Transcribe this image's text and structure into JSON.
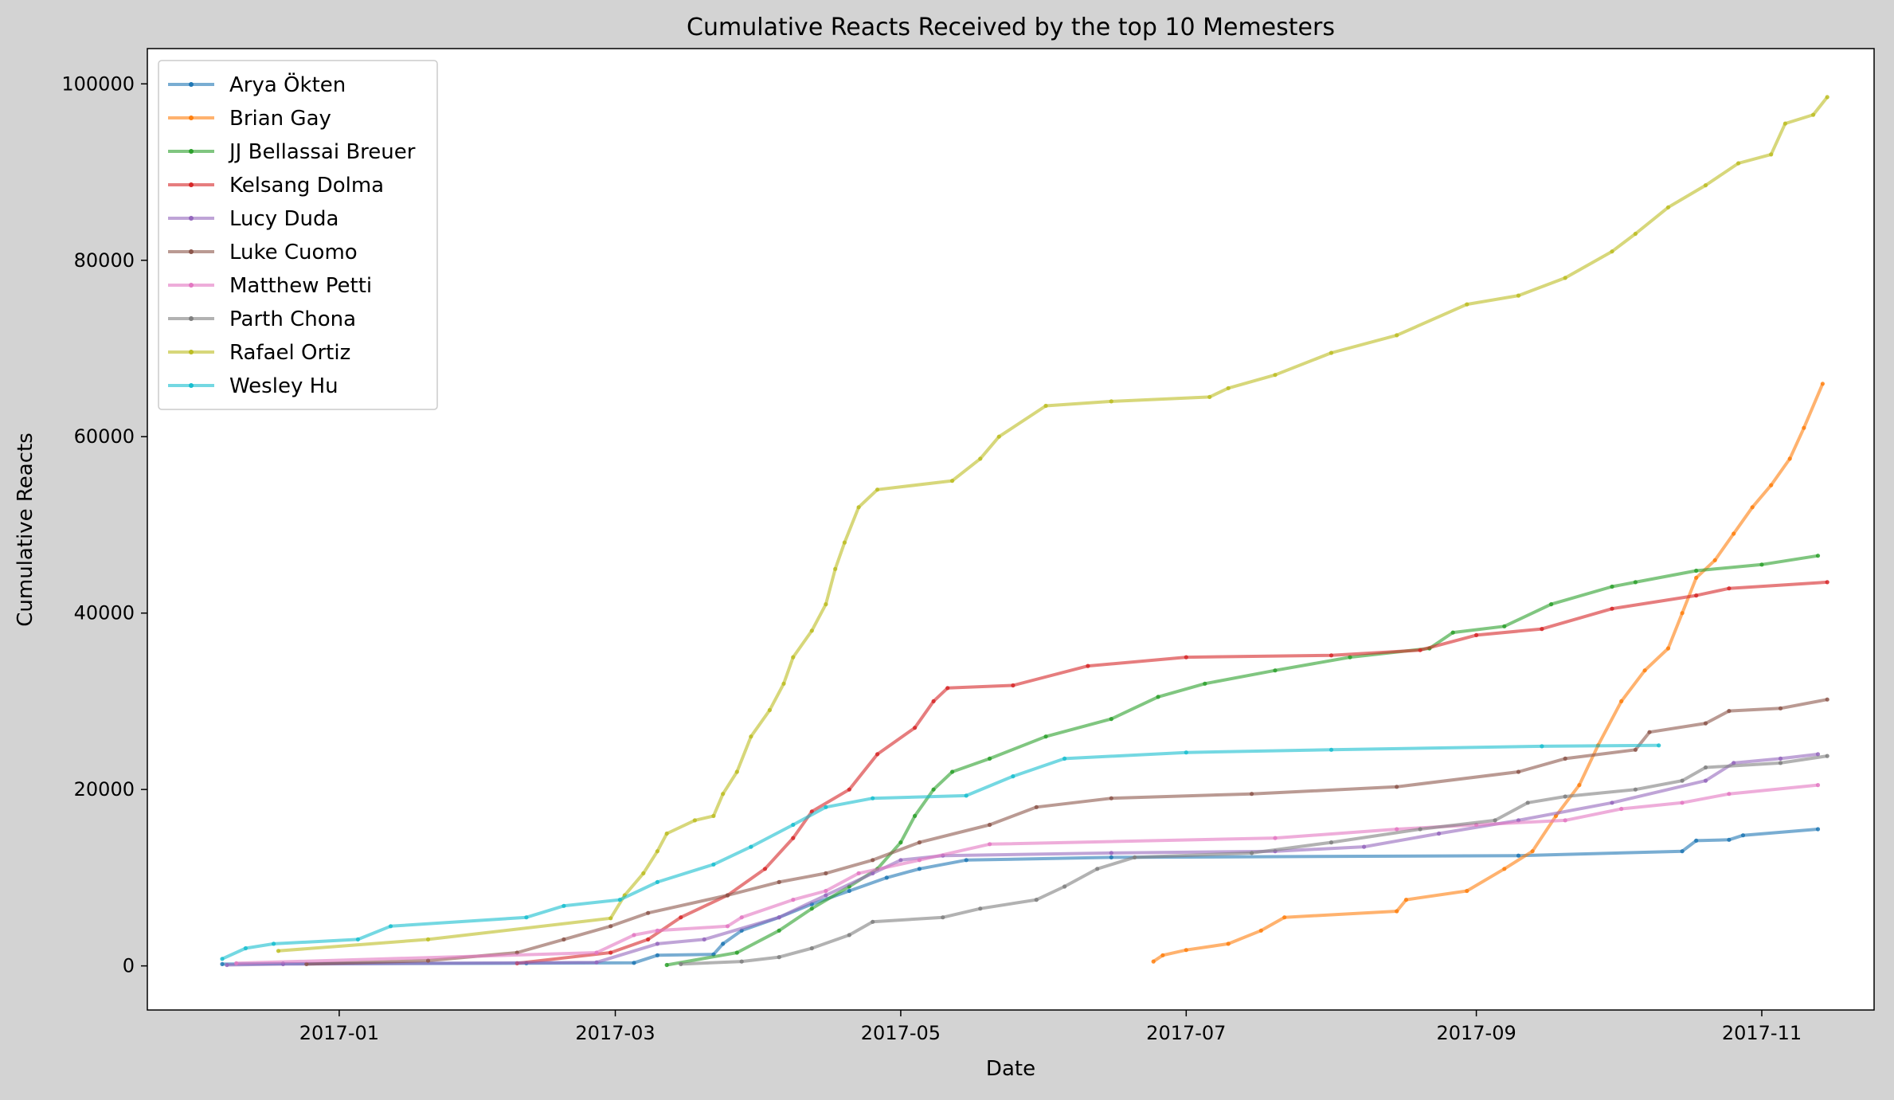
{
  "chart_data": {
    "type": "line",
    "title": "Cumulative Reacts Received by the top 10 Memesters",
    "xlabel": "Date",
    "ylabel": "Cumulative Reacts",
    "xlim": [
      "2016-11-21",
      "2017-11-25"
    ],
    "ylim": [
      -5000,
      104000
    ],
    "xticks": [
      {
        "date": "2017-01-01",
        "label": "2017-01"
      },
      {
        "date": "2017-03-01",
        "label": "2017-03"
      },
      {
        "date": "2017-05-01",
        "label": "2017-05"
      },
      {
        "date": "2017-07-01",
        "label": "2017-07"
      },
      {
        "date": "2017-09-01",
        "label": "2017-09"
      },
      {
        "date": "2017-11-01",
        "label": "2017-11"
      }
    ],
    "yticks": [
      0,
      20000,
      40000,
      60000,
      80000,
      100000
    ],
    "grid": false,
    "legend": "upper-left",
    "series": [
      {
        "name": "Arya Ökten",
        "color": "#1f77b4",
        "points": [
          [
            "2016-12-07",
            200
          ],
          [
            "2016-12-20",
            250
          ],
          [
            "2017-02-10",
            300
          ],
          [
            "2017-03-05",
            350
          ],
          [
            "2017-03-10",
            1200
          ],
          [
            "2017-03-22",
            1300
          ],
          [
            "2017-03-24",
            2500
          ],
          [
            "2017-03-28",
            4000
          ],
          [
            "2017-04-05",
            5500
          ],
          [
            "2017-04-12",
            7000
          ],
          [
            "2017-04-20",
            8500
          ],
          [
            "2017-04-28",
            10000
          ],
          [
            "2017-05-05",
            11000
          ],
          [
            "2017-05-15",
            12000
          ],
          [
            "2017-06-15",
            12300
          ],
          [
            "2017-09-10",
            12500
          ],
          [
            "2017-10-15",
            13000
          ],
          [
            "2017-10-18",
            14200
          ],
          [
            "2017-10-25",
            14300
          ],
          [
            "2017-10-28",
            14800
          ],
          [
            "2017-11-13",
            15500
          ]
        ]
      },
      {
        "name": "Brian Gay",
        "color": "#ff7f0e",
        "points": [
          [
            "2017-06-24",
            500
          ],
          [
            "2017-06-26",
            1200
          ],
          [
            "2017-07-01",
            1800
          ],
          [
            "2017-07-10",
            2500
          ],
          [
            "2017-07-17",
            4000
          ],
          [
            "2017-07-22",
            5500
          ],
          [
            "2017-08-15",
            6200
          ],
          [
            "2017-08-17",
            7500
          ],
          [
            "2017-08-30",
            8500
          ],
          [
            "2017-09-07",
            11000
          ],
          [
            "2017-09-13",
            13000
          ],
          [
            "2017-09-18",
            17000
          ],
          [
            "2017-09-23",
            20500
          ],
          [
            "2017-09-27",
            25000
          ],
          [
            "2017-10-02",
            30000
          ],
          [
            "2017-10-07",
            33500
          ],
          [
            "2017-10-12",
            36000
          ],
          [
            "2017-10-15",
            40000
          ],
          [
            "2017-10-18",
            44000
          ],
          [
            "2017-10-22",
            46000
          ],
          [
            "2017-10-26",
            49000
          ],
          [
            "2017-10-30",
            52000
          ],
          [
            "2017-11-03",
            54500
          ],
          [
            "2017-11-07",
            57500
          ],
          [
            "2017-11-10",
            61000
          ],
          [
            "2017-11-14",
            66000
          ]
        ]
      },
      {
        "name": "JJ Bellassai Breuer",
        "color": "#2ca02c",
        "points": [
          [
            "2017-03-12",
            100
          ],
          [
            "2017-03-27",
            1500
          ],
          [
            "2017-04-05",
            4000
          ],
          [
            "2017-04-12",
            6500
          ],
          [
            "2017-04-20",
            9000
          ],
          [
            "2017-04-26",
            11000
          ],
          [
            "2017-05-01",
            14000
          ],
          [
            "2017-05-04",
            17000
          ],
          [
            "2017-05-08",
            20000
          ],
          [
            "2017-05-12",
            22000
          ],
          [
            "2017-05-20",
            23500
          ],
          [
            "2017-06-01",
            26000
          ],
          [
            "2017-06-15",
            28000
          ],
          [
            "2017-06-25",
            30500
          ],
          [
            "2017-07-05",
            32000
          ],
          [
            "2017-07-20",
            33500
          ],
          [
            "2017-08-05",
            35000
          ],
          [
            "2017-08-22",
            36000
          ],
          [
            "2017-08-27",
            37800
          ],
          [
            "2017-09-07",
            38500
          ],
          [
            "2017-09-17",
            41000
          ],
          [
            "2017-09-30",
            43000
          ],
          [
            "2017-10-05",
            43500
          ],
          [
            "2017-10-18",
            44800
          ],
          [
            "2017-11-01",
            45500
          ],
          [
            "2017-11-13",
            46500
          ]
        ]
      },
      {
        "name": "Kelsang Dolma",
        "color": "#d62728",
        "points": [
          [
            "2017-02-08",
            300
          ],
          [
            "2017-02-28",
            1500
          ],
          [
            "2017-03-08",
            3000
          ],
          [
            "2017-03-15",
            5500
          ],
          [
            "2017-03-25",
            8000
          ],
          [
            "2017-04-02",
            11000
          ],
          [
            "2017-04-08",
            14500
          ],
          [
            "2017-04-12",
            17500
          ],
          [
            "2017-04-20",
            20000
          ],
          [
            "2017-04-26",
            24000
          ],
          [
            "2017-05-04",
            27000
          ],
          [
            "2017-05-08",
            30000
          ],
          [
            "2017-05-11",
            31500
          ],
          [
            "2017-05-25",
            31800
          ],
          [
            "2017-06-10",
            34000
          ],
          [
            "2017-07-01",
            35000
          ],
          [
            "2017-08-01",
            35200
          ],
          [
            "2017-08-20",
            35800
          ],
          [
            "2017-09-01",
            37500
          ],
          [
            "2017-09-15",
            38200
          ],
          [
            "2017-09-30",
            40500
          ],
          [
            "2017-10-18",
            42000
          ],
          [
            "2017-10-25",
            42800
          ],
          [
            "2017-11-15",
            43500
          ]
        ]
      },
      {
        "name": "Lucy Duda",
        "color": "#9467bd",
        "points": [
          [
            "2016-12-08",
            100
          ],
          [
            "2016-12-20",
            200
          ],
          [
            "2017-02-25",
            400
          ],
          [
            "2017-03-10",
            2500
          ],
          [
            "2017-03-20",
            3000
          ],
          [
            "2017-04-05",
            5500
          ],
          [
            "2017-04-15",
            8000
          ],
          [
            "2017-04-25",
            10500
          ],
          [
            "2017-05-01",
            12000
          ],
          [
            "2017-05-10",
            12500
          ],
          [
            "2017-06-15",
            12800
          ],
          [
            "2017-07-20",
            13000
          ],
          [
            "2017-08-08",
            13500
          ],
          [
            "2017-08-24",
            15000
          ],
          [
            "2017-09-10",
            16500
          ],
          [
            "2017-09-30",
            18500
          ],
          [
            "2017-10-20",
            21000
          ],
          [
            "2017-10-26",
            23000
          ],
          [
            "2017-11-05",
            23500
          ],
          [
            "2017-11-13",
            24000
          ]
        ]
      },
      {
        "name": "Luke Cuomo",
        "color": "#8c564b",
        "points": [
          [
            "2016-12-25",
            200
          ],
          [
            "2017-01-20",
            600
          ],
          [
            "2017-02-08",
            1500
          ],
          [
            "2017-02-18",
            3000
          ],
          [
            "2017-02-28",
            4500
          ],
          [
            "2017-03-08",
            6000
          ],
          [
            "2017-03-25",
            8000
          ],
          [
            "2017-04-05",
            9500
          ],
          [
            "2017-04-15",
            10500
          ],
          [
            "2017-04-25",
            12000
          ],
          [
            "2017-05-05",
            14000
          ],
          [
            "2017-05-20",
            16000
          ],
          [
            "2017-05-30",
            18000
          ],
          [
            "2017-06-15",
            19000
          ],
          [
            "2017-07-15",
            19500
          ],
          [
            "2017-08-15",
            20300
          ],
          [
            "2017-09-10",
            22000
          ],
          [
            "2017-09-20",
            23500
          ],
          [
            "2017-10-05",
            24500
          ],
          [
            "2017-10-08",
            26500
          ],
          [
            "2017-10-20",
            27500
          ],
          [
            "2017-10-25",
            28900
          ],
          [
            "2017-11-05",
            29200
          ],
          [
            "2017-11-15",
            30200
          ]
        ]
      },
      {
        "name": "Matthew Petti",
        "color": "#e377c2",
        "points": [
          [
            "2016-12-10",
            300
          ],
          [
            "2017-02-25",
            1500
          ],
          [
            "2017-03-05",
            3500
          ],
          [
            "2017-03-10",
            4000
          ],
          [
            "2017-03-25",
            4500
          ],
          [
            "2017-03-28",
            5500
          ],
          [
            "2017-04-08",
            7500
          ],
          [
            "2017-04-15",
            8500
          ],
          [
            "2017-04-22",
            10500
          ],
          [
            "2017-05-05",
            12000
          ],
          [
            "2017-05-20",
            13800
          ],
          [
            "2017-07-20",
            14500
          ],
          [
            "2017-08-15",
            15500
          ],
          [
            "2017-09-01",
            16000
          ],
          [
            "2017-09-20",
            16500
          ],
          [
            "2017-10-02",
            17800
          ],
          [
            "2017-10-15",
            18500
          ],
          [
            "2017-10-25",
            19500
          ],
          [
            "2017-11-13",
            20500
          ]
        ]
      },
      {
        "name": "Parth Chona",
        "color": "#7f7f7f",
        "points": [
          [
            "2017-03-15",
            200
          ],
          [
            "2017-03-28",
            500
          ],
          [
            "2017-04-05",
            1000
          ],
          [
            "2017-04-12",
            2000
          ],
          [
            "2017-04-20",
            3500
          ],
          [
            "2017-04-25",
            5000
          ],
          [
            "2017-05-10",
            5500
          ],
          [
            "2017-05-18",
            6500
          ],
          [
            "2017-05-30",
            7500
          ],
          [
            "2017-06-05",
            9000
          ],
          [
            "2017-06-12",
            11000
          ],
          [
            "2017-06-20",
            12300
          ],
          [
            "2017-07-15",
            12800
          ],
          [
            "2017-08-01",
            14000
          ],
          [
            "2017-08-20",
            15500
          ],
          [
            "2017-09-05",
            16500
          ],
          [
            "2017-09-12",
            18500
          ],
          [
            "2017-09-20",
            19200
          ],
          [
            "2017-10-05",
            20000
          ],
          [
            "2017-10-15",
            21000
          ],
          [
            "2017-10-20",
            22500
          ],
          [
            "2017-11-05",
            23000
          ],
          [
            "2017-11-15",
            23800
          ]
        ]
      },
      {
        "name": "Rafael Ortiz",
        "color": "#bcbd22",
        "points": [
          [
            "2016-12-19",
            1700
          ],
          [
            "2017-01-20",
            3000
          ],
          [
            "2017-02-28",
            5400
          ],
          [
            "2017-03-03",
            8000
          ],
          [
            "2017-03-07",
            10500
          ],
          [
            "2017-03-10",
            13000
          ],
          [
            "2017-03-12",
            15000
          ],
          [
            "2017-03-18",
            16500
          ],
          [
            "2017-03-22",
            17000
          ],
          [
            "2017-03-24",
            19500
          ],
          [
            "2017-03-27",
            22000
          ],
          [
            "2017-03-30",
            26000
          ],
          [
            "2017-04-03",
            29000
          ],
          [
            "2017-04-06",
            32000
          ],
          [
            "2017-04-08",
            35000
          ],
          [
            "2017-04-12",
            38000
          ],
          [
            "2017-04-15",
            41000
          ],
          [
            "2017-04-17",
            45000
          ],
          [
            "2017-04-19",
            48000
          ],
          [
            "2017-04-22",
            52000
          ],
          [
            "2017-04-26",
            54000
          ],
          [
            "2017-05-12",
            55000
          ],
          [
            "2017-05-18",
            57500
          ],
          [
            "2017-05-22",
            60000
          ],
          [
            "2017-06-01",
            63500
          ],
          [
            "2017-06-15",
            64000
          ],
          [
            "2017-07-06",
            64500
          ],
          [
            "2017-07-10",
            65500
          ],
          [
            "2017-07-20",
            67000
          ],
          [
            "2017-08-01",
            69500
          ],
          [
            "2017-08-15",
            71500
          ],
          [
            "2017-08-30",
            75000
          ],
          [
            "2017-09-10",
            76000
          ],
          [
            "2017-09-20",
            78000
          ],
          [
            "2017-09-30",
            81000
          ],
          [
            "2017-10-05",
            83000
          ],
          [
            "2017-10-12",
            86000
          ],
          [
            "2017-10-20",
            88500
          ],
          [
            "2017-10-27",
            91000
          ],
          [
            "2017-11-03",
            92000
          ],
          [
            "2017-11-06",
            95500
          ],
          [
            "2017-11-12",
            96500
          ],
          [
            "2017-11-15",
            98500
          ]
        ]
      },
      {
        "name": "Wesley Hu",
        "color": "#17becf",
        "points": [
          [
            "2016-12-07",
            800
          ],
          [
            "2016-12-12",
            2000
          ],
          [
            "2016-12-18",
            2500
          ],
          [
            "2017-01-05",
            3000
          ],
          [
            "2017-01-12",
            4500
          ],
          [
            "2017-02-10",
            5500
          ],
          [
            "2017-02-18",
            6800
          ],
          [
            "2017-03-02",
            7500
          ],
          [
            "2017-03-10",
            9500
          ],
          [
            "2017-03-22",
            11500
          ],
          [
            "2017-03-30",
            13500
          ],
          [
            "2017-04-08",
            16000
          ],
          [
            "2017-04-15",
            18000
          ],
          [
            "2017-04-25",
            19000
          ],
          [
            "2017-05-15",
            19300
          ],
          [
            "2017-05-25",
            21500
          ],
          [
            "2017-06-05",
            23500
          ],
          [
            "2017-07-01",
            24200
          ],
          [
            "2017-08-01",
            24500
          ],
          [
            "2017-09-15",
            24900
          ],
          [
            "2017-10-10",
            25000
          ]
        ]
      }
    ]
  }
}
